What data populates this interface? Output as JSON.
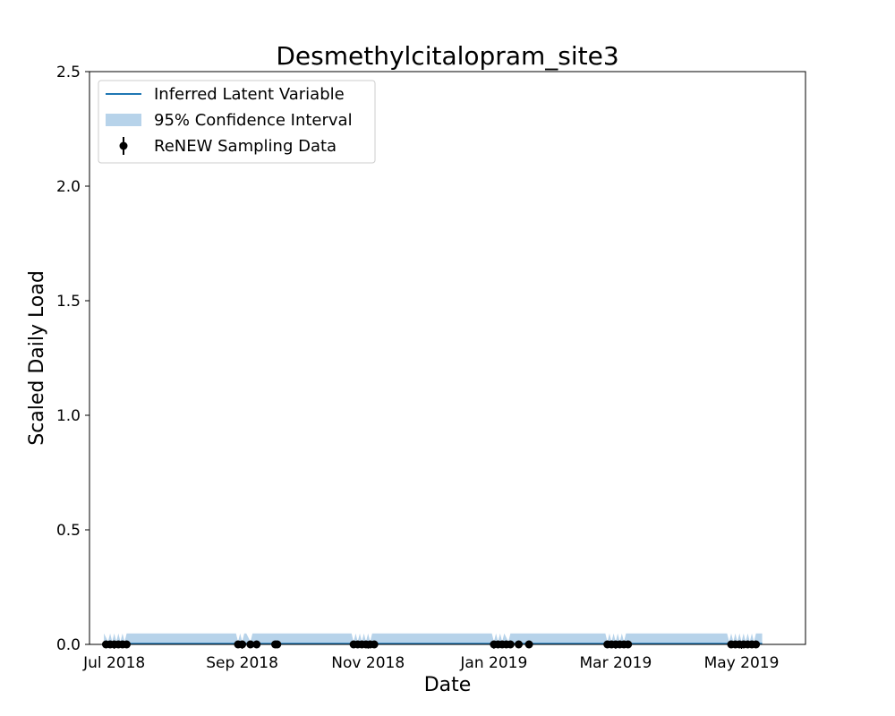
{
  "chart_data": {
    "type": "line",
    "title": "Desmethylcitalopram_site3",
    "xlabel": "Date",
    "ylabel": "Scaled Daily Load",
    "xlim": [
      "2018-06-19",
      "2019-06-01"
    ],
    "ylim": [
      0.0,
      2.5
    ],
    "x_ticks": [
      {
        "date": "2018-07-01",
        "label": "Jul 2018"
      },
      {
        "date": "2018-09-01",
        "label": "Sep 2018"
      },
      {
        "date": "2018-11-01",
        "label": "Nov 2018"
      },
      {
        "date": "2019-01-01",
        "label": "Jan 2019"
      },
      {
        "date": "2019-03-01",
        "label": "Mar 2019"
      },
      {
        "date": "2019-05-01",
        "label": "May 2019"
      }
    ],
    "y_ticks": [
      {
        "value": 0.0,
        "label": "0.0"
      },
      {
        "value": 0.5,
        "label": "0.5"
      },
      {
        "value": 1.0,
        "label": "1.0"
      },
      {
        "value": 1.5,
        "label": "1.5"
      },
      {
        "value": 2.0,
        "label": "2.0"
      },
      {
        "value": 2.5,
        "label": "2.5"
      }
    ],
    "legend": {
      "placement": "upper-left",
      "entries": [
        {
          "key": "line",
          "label": "Inferred Latent Variable"
        },
        {
          "key": "band",
          "label": "95% Confidence Interval"
        },
        {
          "key": "points",
          "label": "ReNEW Sampling Data"
        }
      ]
    },
    "colors": {
      "line": "#1f77b4",
      "band": "#b7d3ea",
      "points": "#000000"
    },
    "series": [
      {
        "name": "Inferred Latent Variable",
        "kind": "line",
        "x": [
          "2018-06-26",
          "2019-05-11"
        ],
        "y": [
          0.003,
          0.003
        ]
      },
      {
        "name": "95% Confidence Interval",
        "kind": "band",
        "x": [
          "2018-06-26",
          "2018-06-28",
          "2018-06-29",
          "2018-06-30",
          "2018-07-01",
          "2018-07-02",
          "2018-07-03",
          "2018-07-04",
          "2018-07-05",
          "2018-07-06",
          "2018-07-07",
          "2018-07-08",
          "2018-08-29",
          "2018-08-30",
          "2018-08-31",
          "2018-09-01",
          "2018-09-02",
          "2018-09-03",
          "2018-09-05",
          "2018-09-06",
          "2018-09-07",
          "2018-09-08",
          "2018-10-24",
          "2018-10-25",
          "2018-10-26",
          "2018-10-27",
          "2018-10-28",
          "2018-10-29",
          "2018-10-30",
          "2018-10-31",
          "2018-11-01",
          "2018-11-02",
          "2018-11-03",
          "2018-11-04",
          "2018-12-31",
          "2019-01-01",
          "2019-01-02",
          "2019-01-03",
          "2019-01-04",
          "2019-01-05",
          "2019-01-06",
          "2019-01-08",
          "2019-01-09",
          "2019-01-10",
          "2019-02-24",
          "2019-02-25",
          "2019-02-26",
          "2019-02-27",
          "2019-02-28",
          "2019-03-01",
          "2019-03-02",
          "2019-03-03",
          "2019-03-04",
          "2019-03-05",
          "2019-03-06",
          "2019-04-24",
          "2019-04-25",
          "2019-04-26",
          "2019-04-27",
          "2019-04-28",
          "2019-04-29",
          "2019-04-30",
          "2019-05-01",
          "2019-05-02",
          "2019-05-03",
          "2019-05-04",
          "2019-05-05",
          "2019-05-06",
          "2019-05-07",
          "2019-05-08",
          "2019-05-11"
        ],
        "lower": [
          0,
          0,
          0,
          0,
          0,
          0,
          0,
          0,
          0,
          0,
          0,
          0,
          0,
          0,
          0,
          0,
          0,
          0,
          0,
          0,
          0,
          0,
          0,
          0,
          0,
          0,
          0,
          0,
          0,
          0,
          0,
          0,
          0,
          0,
          0,
          0,
          0,
          0,
          0,
          0,
          0,
          0,
          0,
          0,
          0,
          0,
          0,
          0,
          0,
          0,
          0,
          0,
          0,
          0,
          0,
          0,
          0,
          0,
          0,
          0,
          0,
          0,
          0,
          0,
          0,
          0,
          0,
          0,
          0,
          0,
          0
        ],
        "upper": [
          0.048,
          0.012,
          0.048,
          0.012,
          0.048,
          0.012,
          0.048,
          0.012,
          0.048,
          0.012,
          0.048,
          0.048,
          0.048,
          0.012,
          0.048,
          0.012,
          0.048,
          0.048,
          0.012,
          0.048,
          0.048,
          0.048,
          0.048,
          0.012,
          0.048,
          0.012,
          0.048,
          0.012,
          0.048,
          0.012,
          0.048,
          0.012,
          0.048,
          0.048,
          0.048,
          0.012,
          0.048,
          0.012,
          0.048,
          0.012,
          0.048,
          0.012,
          0.048,
          0.048,
          0.048,
          0.012,
          0.048,
          0.012,
          0.048,
          0.012,
          0.048,
          0.012,
          0.048,
          0.012,
          0.048,
          0.048,
          0.012,
          0.048,
          0.012,
          0.048,
          0.012,
          0.048,
          0.012,
          0.048,
          0.012,
          0.048,
          0.012,
          0.048,
          0.012,
          0.048,
          0.048
        ]
      },
      {
        "name": "ReNEW Sampling Data",
        "kind": "points",
        "x": [
          "2018-06-27",
          "2018-06-29",
          "2018-07-01",
          "2018-07-03",
          "2018-07-05",
          "2018-07-07",
          "2018-08-30",
          "2018-09-01",
          "2018-09-05",
          "2018-09-08",
          "2018-09-17",
          "2018-09-18",
          "2018-10-25",
          "2018-10-27",
          "2018-10-29",
          "2018-10-31",
          "2018-11-02",
          "2018-11-04",
          "2019-01-01",
          "2019-01-03",
          "2019-01-05",
          "2019-01-07",
          "2019-01-09",
          "2019-01-13",
          "2019-01-18",
          "2019-02-25",
          "2019-02-27",
          "2019-03-01",
          "2019-03-03",
          "2019-03-05",
          "2019-03-07",
          "2019-04-26",
          "2019-04-28",
          "2019-04-30",
          "2019-05-02",
          "2019-05-04",
          "2019-05-06",
          "2019-05-08"
        ],
        "y": [
          0,
          0,
          0,
          0,
          0,
          0,
          0,
          0,
          0,
          0,
          0,
          0,
          0,
          0,
          0,
          0,
          0,
          0,
          0,
          0,
          0,
          0,
          0,
          0,
          0,
          0,
          0,
          0,
          0,
          0,
          0,
          0,
          0,
          0,
          0,
          0,
          0,
          0
        ]
      }
    ]
  }
}
